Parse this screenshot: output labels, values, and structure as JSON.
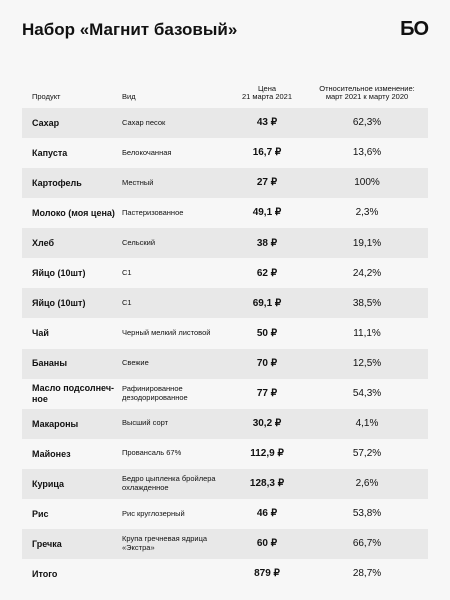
{
  "header": {
    "title": "Набор «Магнит базовый»",
    "logo": "БО"
  },
  "table": {
    "columns": [
      "Продукт",
      "Вид",
      "Цена\n21 марта 2021",
      "Относительное изменение:\nмарт 2021 к марту 2020"
    ],
    "rows": [
      [
        "Сахар",
        "Сахар песок",
        "43 ₽",
        "62,3%"
      ],
      [
        "Капуста",
        "Белокочанная",
        "16,7 ₽",
        "13,6%"
      ],
      [
        "Картофель",
        "Местный",
        "27 ₽",
        "100%"
      ],
      [
        "Молоко (моя цена)",
        "Пастеризованное",
        "49,1 ₽",
        "2,3%"
      ],
      [
        "Хлеб",
        "Сельский",
        "38 ₽",
        "19,1%"
      ],
      [
        "Яйцо  (10шт)",
        "С1",
        "62 ₽",
        "24,2%"
      ],
      [
        "Яйцо  (10шт)",
        "С1",
        "69,1 ₽",
        "38,5%"
      ],
      [
        "Чай",
        "Черный мелкий листовой",
        "50 ₽",
        "11,1%"
      ],
      [
        "Бананы",
        "Свежие",
        "70 ₽",
        "12,5%"
      ],
      [
        "Масло подсолнеч-\nное",
        "Рафинированное\nдезодорированное",
        "77 ₽",
        "54,3%"
      ],
      [
        "Макароны",
        "Высший сорт",
        "30,2 ₽",
        "4,1%"
      ],
      [
        "Майонез",
        "Провансаль 67%",
        "112,9 ₽",
        "57,2%"
      ],
      [
        "Курица",
        "Бедро цыпленка бройлера\nохлажденное",
        "128,3 ₽",
        "2,6%"
      ],
      [
        "Рис",
        "Рис круглозерный",
        "46 ₽",
        "53,8%"
      ],
      [
        "Гречка",
        "Крупа гречневая ядрица\n«Экстра»",
        "60 ₽",
        "66,7%"
      ],
      [
        "Итого",
        "",
        "879 ₽",
        "28,7%"
      ]
    ]
  }
}
